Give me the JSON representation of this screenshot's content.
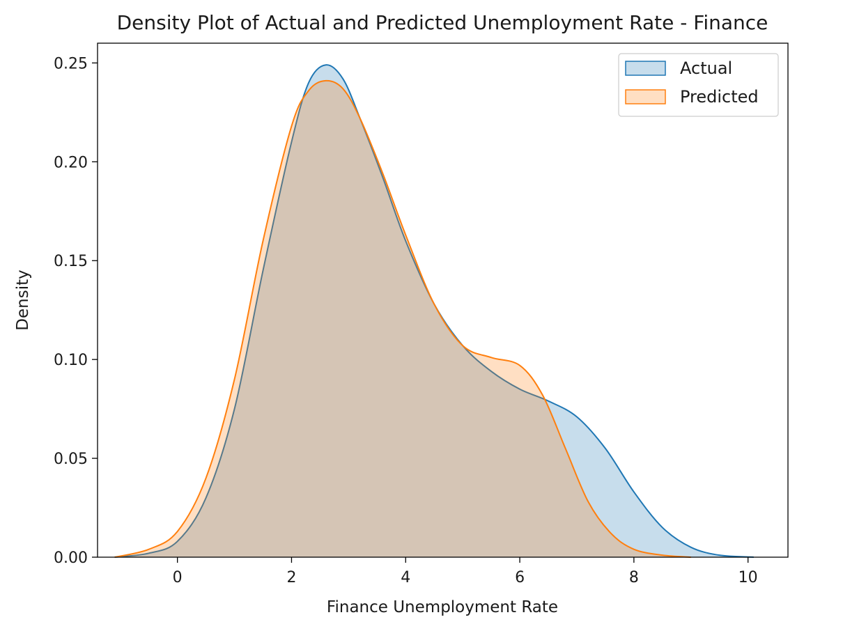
{
  "chart_data": {
    "type": "area",
    "title": "Density Plot of Actual and Predicted Unemployment Rate - Finance",
    "xlabel": "Finance Unemployment Rate",
    "ylabel": "Density",
    "xlim": [
      -1.4,
      10.7
    ],
    "ylim": [
      0,
      0.26
    ],
    "xticks": [
      0,
      2,
      4,
      6,
      8,
      10
    ],
    "yticks": [
      0.0,
      0.05,
      0.1,
      0.15,
      0.2,
      0.25
    ],
    "xtick_labels": [
      "0",
      "2",
      "4",
      "6",
      "8",
      "10"
    ],
    "ytick_labels": [
      "0.00",
      "0.05",
      "0.10",
      "0.15",
      "0.20",
      "0.25"
    ],
    "legend_position": "top-right",
    "grid": false,
    "series": [
      {
        "name": "Actual",
        "color": "#1f77b4",
        "points": [
          [
            -1.1,
            0.0
          ],
          [
            -0.5,
            0.002
          ],
          [
            0.0,
            0.008
          ],
          [
            0.5,
            0.03
          ],
          [
            1.0,
            0.075
          ],
          [
            1.5,
            0.145
          ],
          [
            2.0,
            0.21
          ],
          [
            2.3,
            0.24
          ],
          [
            2.6,
            0.249
          ],
          [
            2.9,
            0.242
          ],
          [
            3.2,
            0.222
          ],
          [
            3.6,
            0.192
          ],
          [
            4.0,
            0.16
          ],
          [
            4.5,
            0.128
          ],
          [
            5.0,
            0.107
          ],
          [
            5.5,
            0.094
          ],
          [
            6.0,
            0.085
          ],
          [
            6.5,
            0.079
          ],
          [
            7.0,
            0.071
          ],
          [
            7.5,
            0.055
          ],
          [
            8.0,
            0.033
          ],
          [
            8.5,
            0.015
          ],
          [
            9.0,
            0.005
          ],
          [
            9.5,
            0.001
          ],
          [
            10.1,
            0.0
          ]
        ]
      },
      {
        "name": "Predicted",
        "color": "#ff7f0e",
        "points": [
          [
            -1.1,
            0.0
          ],
          [
            -0.5,
            0.004
          ],
          [
            0.0,
            0.013
          ],
          [
            0.5,
            0.04
          ],
          [
            1.0,
            0.09
          ],
          [
            1.5,
            0.16
          ],
          [
            2.0,
            0.218
          ],
          [
            2.3,
            0.236
          ],
          [
            2.6,
            0.241
          ],
          [
            2.9,
            0.237
          ],
          [
            3.2,
            0.222
          ],
          [
            3.6,
            0.194
          ],
          [
            4.0,
            0.163
          ],
          [
            4.5,
            0.128
          ],
          [
            5.0,
            0.107
          ],
          [
            5.5,
            0.101
          ],
          [
            6.0,
            0.097
          ],
          [
            6.4,
            0.082
          ],
          [
            6.8,
            0.055
          ],
          [
            7.2,
            0.028
          ],
          [
            7.6,
            0.012
          ],
          [
            8.0,
            0.004
          ],
          [
            8.5,
            0.001
          ],
          [
            9.0,
            0.0
          ]
        ]
      }
    ]
  }
}
